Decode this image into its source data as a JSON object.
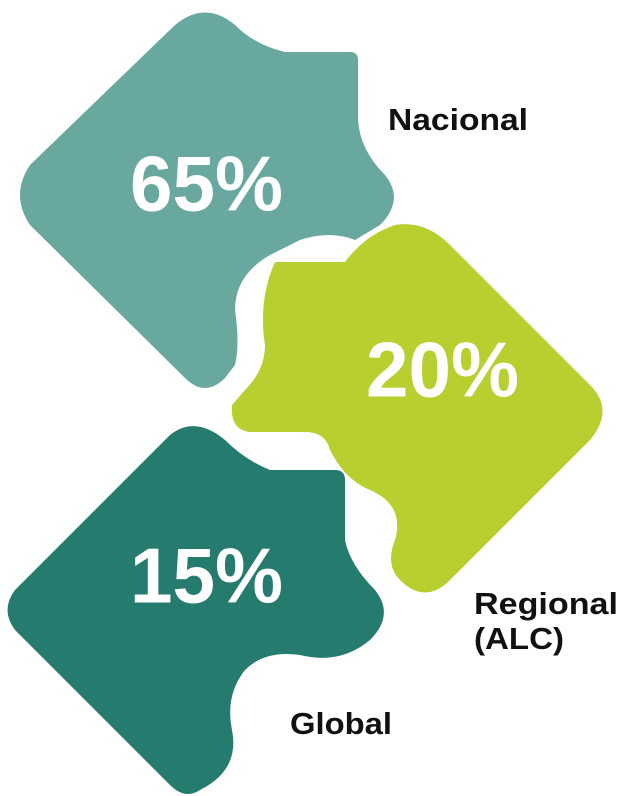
{
  "pieces": [
    {
      "value": "65%",
      "label": [
        "Nacional"
      ]
    },
    {
      "value": "20%",
      "label": [
        "Regional",
        "(ALC)"
      ]
    },
    {
      "value": "15%",
      "label": [
        "Global"
      ]
    }
  ]
}
